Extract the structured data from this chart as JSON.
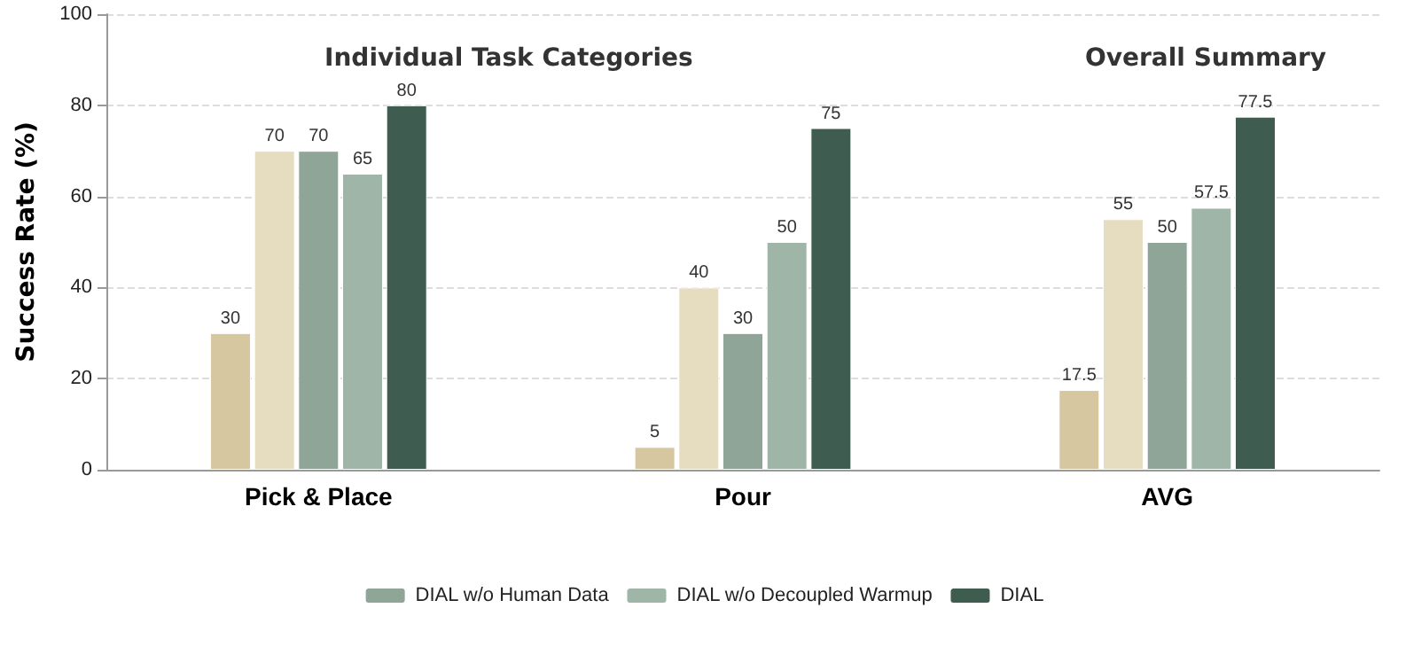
{
  "chart_data": {
    "type": "bar",
    "ylabel": "Success Rate (%)",
    "categories": [
      "Pick & Place",
      "Pour",
      "AVG"
    ],
    "series": [
      {
        "color": "#d6c7a0",
        "values": [
          30,
          5,
          17.5
        ]
      },
      {
        "color": "#e6dcc0",
        "values": [
          70,
          40,
          55
        ]
      },
      {
        "name": "DIAL w/o Human Data",
        "color": "#8fa598",
        "values": [
          70,
          30,
          50
        ]
      },
      {
        "name": "DIAL w/o Decoupled Warmup",
        "color": "#9fb5a8",
        "values": [
          65,
          50,
          57.5
        ]
      },
      {
        "name": "DIAL",
        "color": "#3e5c4f",
        "values": [
          80,
          75,
          77.5
        ]
      }
    ],
    "ylim": [
      0,
      100
    ],
    "yticks": [
      0,
      20,
      40,
      60,
      80,
      100
    ],
    "grid": "y",
    "legend": "bottom",
    "data_labels": true,
    "annotations": [
      "Individual Task Categories",
      "Overall Summary"
    ]
  }
}
